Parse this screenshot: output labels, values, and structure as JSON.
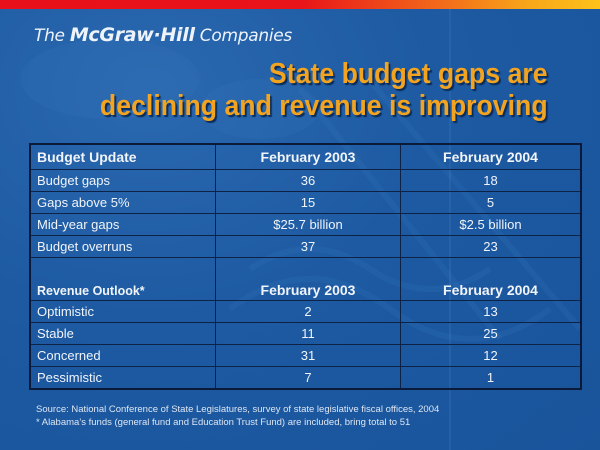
{
  "logo": {
    "prefix": "The ",
    "brand": "McGraw·Hill",
    "suffix": " Companies"
  },
  "title": {
    "line1": "State budget gaps are",
    "line2": "declining and revenue is improving"
  },
  "budget_table": {
    "headers": [
      "Budget Update",
      "February 2003",
      "February 2004"
    ],
    "rows": [
      {
        "label": "Budget gaps",
        "feb2003": "36",
        "feb2004": "18"
      },
      {
        "label": "Gaps above 5%",
        "feb2003": "15",
        "feb2004": "5"
      },
      {
        "label": "Mid-year gaps",
        "feb2003": "$25.7 billion",
        "feb2004": "$2.5 billion"
      },
      {
        "label": "Budget overruns",
        "feb2003": "37",
        "feb2004": "23"
      }
    ]
  },
  "revenue_table": {
    "headers": [
      "Revenue Outlook*",
      "February 2003",
      "February 2004"
    ],
    "rows": [
      {
        "label": "Optimistic",
        "feb2003": "2",
        "feb2004": "13"
      },
      {
        "label": "Stable",
        "feb2003": "11",
        "feb2004": "25"
      },
      {
        "label": "Concerned",
        "feb2003": "31",
        "feb2004": "12"
      },
      {
        "label": "Pessimistic",
        "feb2003": "7",
        "feb2004": "1"
      }
    ]
  },
  "footnotes": {
    "source": "Source: National Conference of State Legislatures, survey of state legislative fiscal offices, 2004",
    "note": "* Alabama’s funds (general fund and Education Trust Fund) are included, bring total to 51"
  },
  "colors": {
    "title": "#f2a421",
    "background": "#1d5aa2",
    "top_bar_start": "#e8101a",
    "top_bar_end": "#fdc21a"
  }
}
